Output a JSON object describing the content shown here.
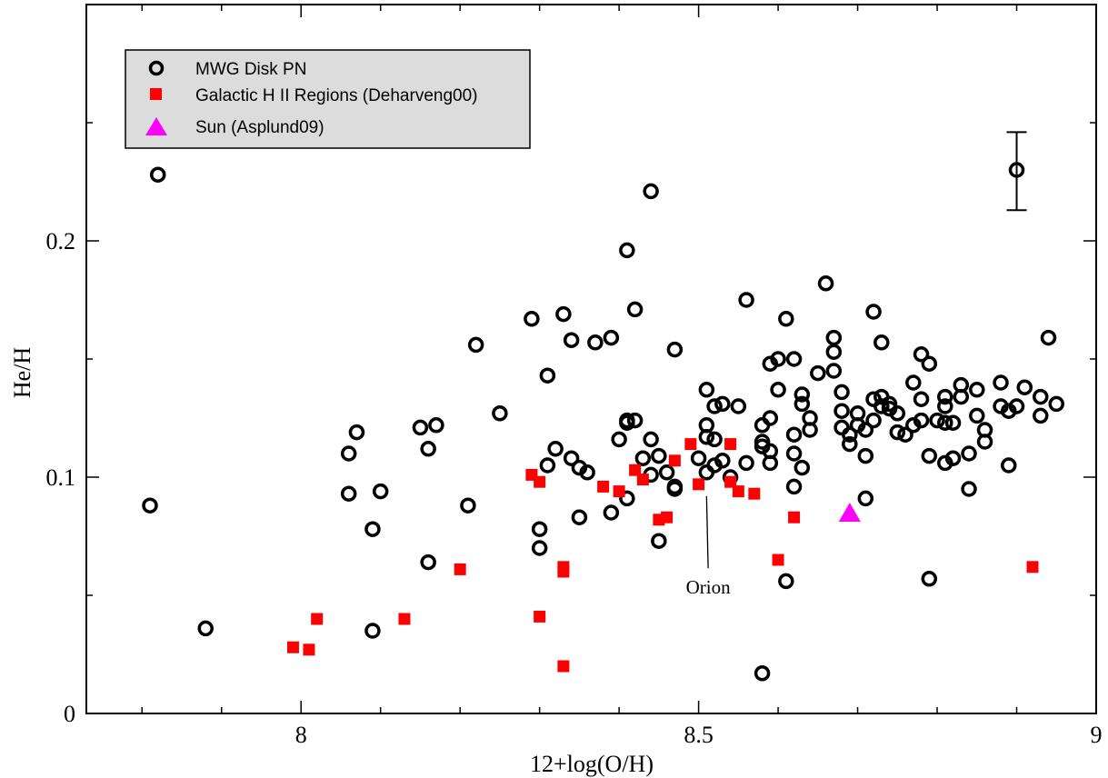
{
  "chart_data": {
    "type": "scatter",
    "xlabel": "12+log(O/H)",
    "ylabel": "He/H",
    "xlim": [
      7.73,
      9.0
    ],
    "ylim": [
      0,
      0.3
    ],
    "xticks": [
      {
        "value": 8.0,
        "label": "8"
      },
      {
        "value": 8.5,
        "label": "8.5"
      },
      {
        "value": 9.0,
        "label": "9"
      }
    ],
    "yticks": [
      {
        "value": 0.0,
        "label": "0"
      },
      {
        "value": 0.1,
        "label": "0.1"
      },
      {
        "value": 0.2,
        "label": "0.2"
      }
    ],
    "legend": {
      "position": "top-left",
      "background": "#dcdcdc"
    },
    "series": [
      {
        "name": "MWG Disk PN",
        "marker": "open-circle",
        "color": "#000000",
        "points": [
          [
            7.82,
            0.228
          ],
          [
            7.81,
            0.088
          ],
          [
            7.88,
            0.036
          ],
          [
            8.07,
            0.119
          ],
          [
            8.06,
            0.11
          ],
          [
            8.06,
            0.093
          ],
          [
            8.1,
            0.094
          ],
          [
            8.09,
            0.078
          ],
          [
            8.09,
            0.035
          ],
          [
            8.15,
            0.121
          ],
          [
            8.17,
            0.122
          ],
          [
            8.16,
            0.112
          ],
          [
            8.16,
            0.064
          ],
          [
            8.22,
            0.156
          ],
          [
            8.25,
            0.127
          ],
          [
            8.21,
            0.088
          ],
          [
            8.29,
            0.167
          ],
          [
            8.31,
            0.143
          ],
          [
            8.33,
            0.169
          ],
          [
            8.34,
            0.158
          ],
          [
            8.37,
            0.157
          ],
          [
            8.39,
            0.159
          ],
          [
            8.32,
            0.112
          ],
          [
            8.34,
            0.108
          ],
          [
            8.31,
            0.105
          ],
          [
            8.3,
            0.078
          ],
          [
            8.3,
            0.07
          ],
          [
            8.35,
            0.104
          ],
          [
            8.36,
            0.102
          ],
          [
            8.35,
            0.083
          ],
          [
            8.39,
            0.085
          ],
          [
            8.4,
            0.116
          ],
          [
            8.41,
            0.124
          ],
          [
            8.42,
            0.124
          ],
          [
            8.41,
            0.123
          ],
          [
            8.41,
            0.091
          ],
          [
            8.41,
            0.196
          ],
          [
            8.44,
            0.221
          ],
          [
            8.42,
            0.171
          ],
          [
            8.47,
            0.154
          ],
          [
            8.44,
            0.116
          ],
          [
            8.43,
            0.108
          ],
          [
            8.45,
            0.109
          ],
          [
            8.44,
            0.101
          ],
          [
            8.45,
            0.073
          ],
          [
            8.46,
            0.102
          ],
          [
            8.47,
            0.096
          ],
          [
            8.47,
            0.095
          ],
          [
            8.5,
            0.108
          ],
          [
            8.51,
            0.137
          ],
          [
            8.51,
            0.122
          ],
          [
            8.52,
            0.13
          ],
          [
            8.53,
            0.131
          ],
          [
            8.51,
            0.117
          ],
          [
            8.52,
            0.116
          ],
          [
            8.51,
            0.102
          ],
          [
            8.52,
            0.105
          ],
          [
            8.53,
            0.107
          ],
          [
            8.54,
            0.1
          ],
          [
            8.55,
            0.13
          ],
          [
            8.56,
            0.175
          ],
          [
            8.58,
            0.122
          ],
          [
            8.58,
            0.115
          ],
          [
            8.58,
            0.113
          ],
          [
            8.59,
            0.148
          ],
          [
            8.59,
            0.125
          ],
          [
            8.6,
            0.15
          ],
          [
            8.6,
            0.137
          ],
          [
            8.59,
            0.111
          ],
          [
            8.59,
            0.106
          ],
          [
            8.56,
            0.106
          ],
          [
            8.61,
            0.167
          ],
          [
            8.62,
            0.15
          ],
          [
            8.62,
            0.118
          ],
          [
            8.62,
            0.11
          ],
          [
            8.63,
            0.104
          ],
          [
            8.63,
            0.135
          ],
          [
            8.63,
            0.131
          ],
          [
            8.64,
            0.125
          ],
          [
            8.64,
            0.12
          ],
          [
            8.65,
            0.144
          ],
          [
            8.66,
            0.182
          ],
          [
            8.67,
            0.159
          ],
          [
            8.67,
            0.153
          ],
          [
            8.67,
            0.145
          ],
          [
            8.68,
            0.136
          ],
          [
            8.68,
            0.128
          ],
          [
            8.68,
            0.121
          ],
          [
            8.69,
            0.118
          ],
          [
            8.69,
            0.114
          ],
          [
            8.7,
            0.127
          ],
          [
            8.7,
            0.122
          ],
          [
            8.71,
            0.12
          ],
          [
            8.71,
            0.109
          ],
          [
            8.72,
            0.17
          ],
          [
            8.72,
            0.133
          ],
          [
            8.72,
            0.124
          ],
          [
            8.73,
            0.157
          ],
          [
            8.73,
            0.134
          ],
          [
            8.73,
            0.13
          ],
          [
            8.74,
            0.129
          ],
          [
            8.74,
            0.131
          ],
          [
            8.75,
            0.127
          ],
          [
            8.75,
            0.119
          ],
          [
            8.76,
            0.118
          ],
          [
            8.77,
            0.14
          ],
          [
            8.77,
            0.122
          ],
          [
            8.78,
            0.152
          ],
          [
            8.78,
            0.133
          ],
          [
            8.78,
            0.124
          ],
          [
            8.79,
            0.148
          ],
          [
            8.79,
            0.109
          ],
          [
            8.8,
            0.124
          ],
          [
            8.81,
            0.123
          ],
          [
            8.81,
            0.134
          ],
          [
            8.81,
            0.13
          ],
          [
            8.81,
            0.106
          ],
          [
            8.82,
            0.123
          ],
          [
            8.82,
            0.108
          ],
          [
            8.83,
            0.139
          ],
          [
            8.83,
            0.134
          ],
          [
            8.84,
            0.11
          ],
          [
            8.84,
            0.095
          ],
          [
            8.85,
            0.137
          ],
          [
            8.85,
            0.126
          ],
          [
            8.86,
            0.12
          ],
          [
            8.86,
            0.115
          ],
          [
            8.88,
            0.13
          ],
          [
            8.88,
            0.14
          ],
          [
            8.89,
            0.128
          ],
          [
            8.89,
            0.105
          ],
          [
            8.9,
            0.13
          ],
          [
            8.91,
            0.138
          ],
          [
            8.93,
            0.134
          ],
          [
            8.93,
            0.126
          ],
          [
            8.94,
            0.159
          ],
          [
            8.95,
            0.131
          ],
          [
            8.62,
            0.096
          ],
          [
            8.61,
            0.056
          ],
          [
            8.58,
            0.017
          ],
          [
            8.79,
            0.057
          ],
          [
            8.71,
            0.091
          ],
          [
            8.9,
            0.23
          ]
        ]
      },
      {
        "name": "Galactic H II Regions (Deharveng00)",
        "marker": "filled-square",
        "color": "#ff0000",
        "points": [
          [
            7.99,
            0.028
          ],
          [
            8.01,
            0.027
          ],
          [
            8.02,
            0.04
          ],
          [
            8.13,
            0.04
          ],
          [
            8.2,
            0.061
          ],
          [
            8.29,
            0.101
          ],
          [
            8.3,
            0.098
          ],
          [
            8.3,
            0.041
          ],
          [
            8.33,
            0.062
          ],
          [
            8.33,
            0.06
          ],
          [
            8.33,
            0.02
          ],
          [
            8.38,
            0.096
          ],
          [
            8.4,
            0.094
          ],
          [
            8.42,
            0.103
          ],
          [
            8.43,
            0.099
          ],
          [
            8.45,
            0.082
          ],
          [
            8.46,
            0.083
          ],
          [
            8.47,
            0.107
          ],
          [
            8.49,
            0.114
          ],
          [
            8.5,
            0.097
          ],
          [
            8.54,
            0.114
          ],
          [
            8.54,
            0.098
          ],
          [
            8.55,
            0.094
          ],
          [
            8.57,
            0.093
          ],
          [
            8.6,
            0.065
          ],
          [
            8.62,
            0.083
          ],
          [
            8.92,
            0.062
          ]
        ]
      },
      {
        "name": "Sun (Asplund09)",
        "marker": "filled-triangle",
        "color": "#ff00ff",
        "points": [
          [
            8.69,
            0.085
          ]
        ]
      }
    ],
    "error_bar": {
      "x": 8.9,
      "y": 0.23,
      "low": 0.213,
      "high": 0.246
    },
    "annotations": [
      {
        "text": "Orion",
        "x": 8.51,
        "y": 0.092,
        "label_x": 8.48,
        "label_y": 0.053
      }
    ]
  }
}
